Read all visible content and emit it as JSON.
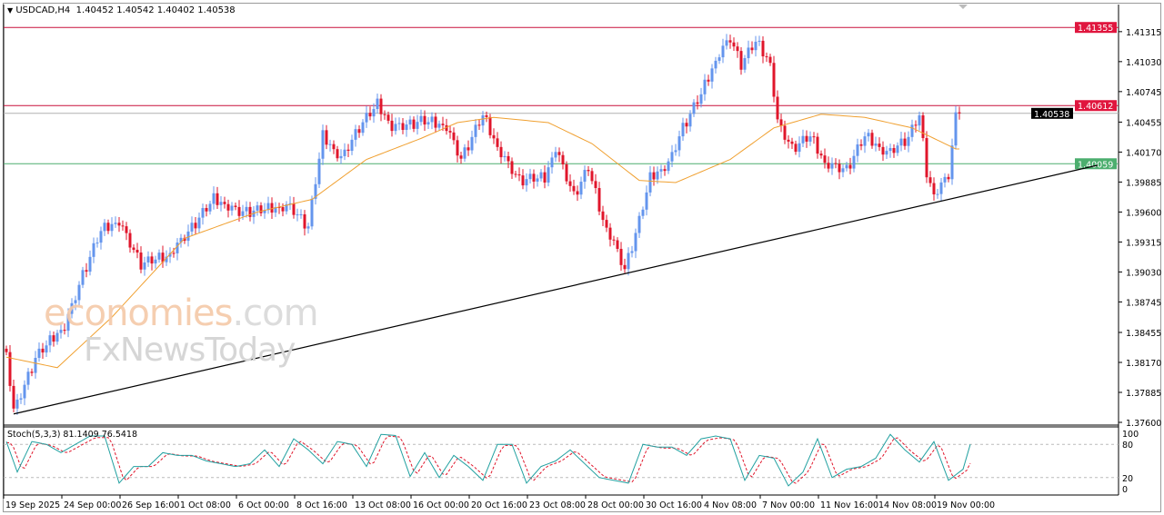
{
  "header": {
    "symbol_timeframe": "USDCAD,H4",
    "open": "1.40452",
    "high": "1.40542",
    "low": "1.40402",
    "close": "1.40538",
    "menu_icon": "triangle-down-icon"
  },
  "watermark": {
    "brand": "economies",
    "domain": ".com",
    "sub": "FxNewsToday"
  },
  "colors": {
    "bull": "#6495ed",
    "bear": "#e0162b",
    "ma": "#f0a030",
    "stoch_main": "#20a0a0",
    "stoch_signal": "#e0162b",
    "support": "#4cae6e",
    "resistance": "#c8103c",
    "current": "#000000"
  },
  "chart_data": {
    "type": "candlestick",
    "symbol": "USDCAD",
    "timeframe": "H4",
    "ylim": [
      1.376,
      1.415
    ],
    "y_ticks": [
      "1.41315",
      "1.41030",
      "1.40745",
      "1.40455",
      "1.40170",
      "1.39885",
      "1.39600",
      "1.39315",
      "1.39030",
      "1.38745",
      "1.38455",
      "1.38170",
      "1.37885",
      "1.37600"
    ],
    "x_ticks": [
      "19 Sep 2025",
      "24 Sep 00:00",
      "26 Sep 16:00",
      "1 Oct 08:00",
      "6 Oct 00:00",
      "8 Oct 16:00",
      "13 Oct 08:00",
      "16 Oct 00:00",
      "20 Oct 16:00",
      "23 Oct 08:00",
      "28 Oct 00:00",
      "30 Oct 16:00",
      "4 Nov 08:00",
      "7 Nov 00:00",
      "11 Nov 16:00",
      "14 Nov 08:00",
      "19 Nov 00:00"
    ],
    "bars_per_tick": 16,
    "close_path": [
      [
        0,
        1.3825
      ],
      [
        2,
        1.377
      ],
      [
        8,
        1.382
      ],
      [
        16,
        1.385
      ],
      [
        21,
        1.39
      ],
      [
        26,
        1.394
      ],
      [
        31,
        1.395
      ],
      [
        37,
        1.391
      ],
      [
        44,
        1.3915
      ],
      [
        51,
        1.3945
      ],
      [
        57,
        1.397
      ],
      [
        64,
        1.396
      ],
      [
        71,
        1.396
      ],
      [
        78,
        1.3965
      ],
      [
        83,
        1.3945
      ],
      [
        87,
        1.403
      ],
      [
        92,
        1.401
      ],
      [
        97,
        1.404
      ],
      [
        102,
        1.406
      ],
      [
        106,
        1.404
      ],
      [
        114,
        1.4045
      ],
      [
        121,
        1.404
      ],
      [
        125,
        1.401
      ],
      [
        131,
        1.405
      ],
      [
        135,
        1.402
      ],
      [
        141,
        1.399
      ],
      [
        148,
        1.399
      ],
      [
        151,
        1.402
      ],
      [
        156,
        1.3975
      ],
      [
        160,
        1.4
      ],
      [
        164,
        1.395
      ],
      [
        167,
        1.393
      ],
      [
        170,
        1.3905
      ],
      [
        174,
        1.395
      ],
      [
        177,
        1.399
      ],
      [
        182,
        1.4005
      ],
      [
        186,
        1.404
      ],
      [
        191,
        1.407
      ],
      [
        196,
        1.411
      ],
      [
        199,
        1.4125
      ],
      [
        202,
        1.41
      ],
      [
        206,
        1.412
      ],
      [
        210,
        1.41
      ],
      [
        212,
        1.4045
      ],
      [
        216,
        1.402
      ],
      [
        221,
        1.403
      ],
      [
        225,
        1.4005
      ],
      [
        231,
        1.4
      ],
      [
        236,
        1.403
      ],
      [
        242,
        1.4015
      ],
      [
        248,
        1.403
      ],
      [
        251,
        1.405
      ],
      [
        253,
        1.3995
      ],
      [
        255,
        1.3975
      ],
      [
        259,
        1.3995
      ],
      [
        261,
        1.405
      ],
      [
        262,
        1.40538
      ]
    ],
    "ma_path": [
      [
        0,
        1.3822
      ],
      [
        14,
        1.3812
      ],
      [
        29,
        1.386
      ],
      [
        49,
        1.3935
      ],
      [
        69,
        1.396
      ],
      [
        84,
        1.3972
      ],
      [
        99,
        1.401
      ],
      [
        114,
        1.403
      ],
      [
        124,
        1.4045
      ],
      [
        134,
        1.405
      ],
      [
        149,
        1.4045
      ],
      [
        161,
        1.4025
      ],
      [
        174,
        1.399
      ],
      [
        184,
        1.3988
      ],
      [
        199,
        1.401
      ],
      [
        211,
        1.404
      ],
      [
        224,
        1.4053
      ],
      [
        236,
        1.405
      ],
      [
        249,
        1.404
      ],
      [
        261,
        1.402
      ]
    ],
    "horizontal_lines": [
      {
        "price": "1.41355",
        "role": "resistance"
      },
      {
        "price": "1.40612",
        "role": "resistance"
      },
      {
        "price": "1.40538",
        "role": "current"
      },
      {
        "price": "1.40059",
        "role": "support"
      }
    ],
    "trendline": {
      "from": [
        2,
        1.3768
      ],
      "to": [
        300,
        1.40045
      ]
    },
    "stochastic": {
      "label": "Stoch(5,3,3) 81.1409 76.5418",
      "params": "5,3,3",
      "main": "81.1409",
      "signal": "76.5418",
      "levels": [
        "100",
        "80",
        "20",
        "0"
      ],
      "main_path": [
        [
          0,
          85
        ],
        [
          3,
          30
        ],
        [
          7,
          85
        ],
        [
          11,
          80
        ],
        [
          15,
          65
        ],
        [
          19,
          80
        ],
        [
          23,
          95
        ],
        [
          27,
          95
        ],
        [
          31,
          10
        ],
        [
          35,
          40
        ],
        [
          39,
          40
        ],
        [
          43,
          65
        ],
        [
          47,
          60
        ],
        [
          51,
          60
        ],
        [
          55,
          50
        ],
        [
          59,
          45
        ],
        [
          63,
          40
        ],
        [
          67,
          45
        ],
        [
          71,
          70
        ],
        [
          75,
          40
        ],
        [
          79,
          90
        ],
        [
          83,
          70
        ],
        [
          87,
          45
        ],
        [
          91,
          85
        ],
        [
          95,
          80
        ],
        [
          99,
          40
        ],
        [
          103,
          98
        ],
        [
          107,
          96
        ],
        [
          111,
          22
        ],
        [
          115,
          65
        ],
        [
          119,
          20
        ],
        [
          123,
          60
        ],
        [
          127,
          40
        ],
        [
          131,
          15
        ],
        [
          135,
          80
        ],
        [
          139,
          80
        ],
        [
          143,
          10
        ],
        [
          147,
          40
        ],
        [
          151,
          50
        ],
        [
          155,
          70
        ],
        [
          159,
          45
        ],
        [
          163,
          20
        ],
        [
          167,
          15
        ],
        [
          171,
          10
        ],
        [
          175,
          80
        ],
        [
          179,
          75
        ],
        [
          183,
          75
        ],
        [
          187,
          60
        ],
        [
          191,
          90
        ],
        [
          195,
          95
        ],
        [
          199,
          90
        ],
        [
          203,
          15
        ],
        [
          207,
          60
        ],
        [
          211,
          55
        ],
        [
          215,
          5
        ],
        [
          219,
          30
        ],
        [
          223,
          90
        ],
        [
          227,
          20
        ],
        [
          231,
          35
        ],
        [
          235,
          40
        ],
        [
          239,
          55
        ],
        [
          243,
          98
        ],
        [
          247,
          70
        ],
        [
          251,
          48
        ],
        [
          255,
          85
        ],
        [
          259,
          15
        ],
        [
          263,
          35
        ],
        [
          265,
          80
        ]
      ]
    }
  }
}
